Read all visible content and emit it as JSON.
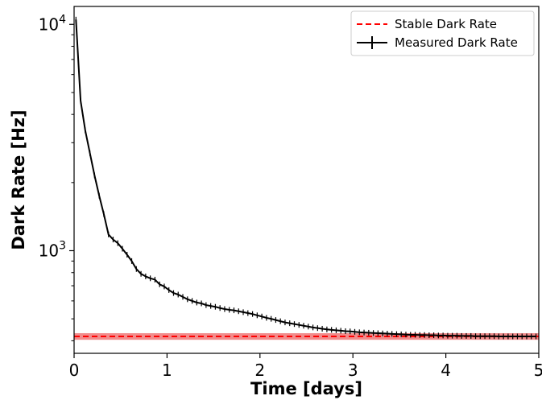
{
  "chart_data": {
    "type": "line",
    "xlabel": "Time [days]",
    "ylabel": "Dark Rate [Hz]",
    "xlim": [
      0,
      5
    ],
    "ylim": [
      352,
      12000
    ],
    "yscale": "log",
    "grid": false,
    "legend_position": "top-right",
    "x_ticks": [
      0,
      1,
      2,
      3,
      4,
      5
    ],
    "x_tick_labels": [
      "0",
      "1",
      "2",
      "3",
      "4",
      "5"
    ],
    "y_major_ticks": [
      {
        "value": 1000,
        "mantissa": "10",
        "exponent": "3"
      },
      {
        "value": 10000,
        "mantissa": "10",
        "exponent": "4"
      }
    ],
    "stable_dark_rate": {
      "name": "Stable Dark Rate",
      "value": 418,
      "band": [
        404,
        432
      ],
      "color": "#ff0000",
      "band_color": "#f08080",
      "style": "dashed"
    },
    "series": [
      {
        "name": "Measured Dark Rate",
        "color": "#000000",
        "error_bars": true,
        "points": [
          [
            0.02,
            10500
          ],
          [
            0.07,
            4600
          ],
          [
            0.12,
            3400
          ],
          [
            0.17,
            2700
          ],
          [
            0.22,
            2150
          ],
          [
            0.27,
            1750
          ],
          [
            0.32,
            1450
          ],
          [
            0.37,
            1180
          ],
          [
            0.42,
            1120
          ],
          [
            0.47,
            1080
          ],
          [
            0.52,
            1020
          ],
          [
            0.57,
            960
          ],
          [
            0.62,
            900
          ],
          [
            0.67,
            830
          ],
          [
            0.72,
            790
          ],
          [
            0.77,
            770
          ],
          [
            0.82,
            755
          ],
          [
            0.87,
            745
          ],
          [
            0.92,
            710
          ],
          [
            0.97,
            695
          ],
          [
            1.02,
            670
          ],
          [
            1.07,
            650
          ],
          [
            1.12,
            640
          ],
          [
            1.17,
            625
          ],
          [
            1.22,
            610
          ],
          [
            1.27,
            600
          ],
          [
            1.32,
            590
          ],
          [
            1.37,
            585
          ],
          [
            1.42,
            575
          ],
          [
            1.47,
            570
          ],
          [
            1.52,
            565
          ],
          [
            1.57,
            558
          ],
          [
            1.62,
            552
          ],
          [
            1.67,
            548
          ],
          [
            1.72,
            545
          ],
          [
            1.77,
            540
          ],
          [
            1.82,
            535
          ],
          [
            1.87,
            530
          ],
          [
            1.92,
            525
          ],
          [
            1.97,
            518
          ],
          [
            2.02,
            512
          ],
          [
            2.07,
            505
          ],
          [
            2.12,
            500
          ],
          [
            2.17,
            494
          ],
          [
            2.22,
            488
          ],
          [
            2.27,
            482
          ],
          [
            2.32,
            478
          ],
          [
            2.37,
            474
          ],
          [
            2.42,
            470
          ],
          [
            2.47,
            466
          ],
          [
            2.52,
            462
          ],
          [
            2.57,
            458
          ],
          [
            2.62,
            455
          ],
          [
            2.67,
            452
          ],
          [
            2.72,
            449
          ],
          [
            2.77,
            447
          ],
          [
            2.82,
            445
          ],
          [
            2.87,
            443
          ],
          [
            2.92,
            441
          ],
          [
            2.97,
            440
          ],
          [
            3.02,
            438
          ],
          [
            3.07,
            436
          ],
          [
            3.12,
            435
          ],
          [
            3.17,
            434
          ],
          [
            3.22,
            433
          ],
          [
            3.27,
            432
          ],
          [
            3.32,
            431
          ],
          [
            3.37,
            430
          ],
          [
            3.42,
            429
          ],
          [
            3.47,
            428
          ],
          [
            3.52,
            427
          ],
          [
            3.57,
            426
          ],
          [
            3.62,
            425
          ],
          [
            3.67,
            425
          ],
          [
            3.72,
            424
          ],
          [
            3.77,
            424
          ],
          [
            3.82,
            423
          ],
          [
            3.87,
            423
          ],
          [
            3.92,
            422
          ],
          [
            3.97,
            422
          ],
          [
            4.02,
            421
          ],
          [
            4.07,
            421
          ],
          [
            4.12,
            421
          ],
          [
            4.17,
            420
          ],
          [
            4.22,
            420
          ],
          [
            4.27,
            420
          ],
          [
            4.32,
            419
          ],
          [
            4.37,
            419
          ],
          [
            4.42,
            419
          ],
          [
            4.47,
            419
          ],
          [
            4.52,
            419
          ],
          [
            4.57,
            418
          ],
          [
            4.62,
            418
          ],
          [
            4.67,
            418
          ],
          [
            4.72,
            418
          ],
          [
            4.77,
            418
          ],
          [
            4.82,
            418
          ],
          [
            4.87,
            418
          ],
          [
            4.92,
            418
          ],
          [
            4.97,
            418
          ]
        ]
      }
    ]
  }
}
